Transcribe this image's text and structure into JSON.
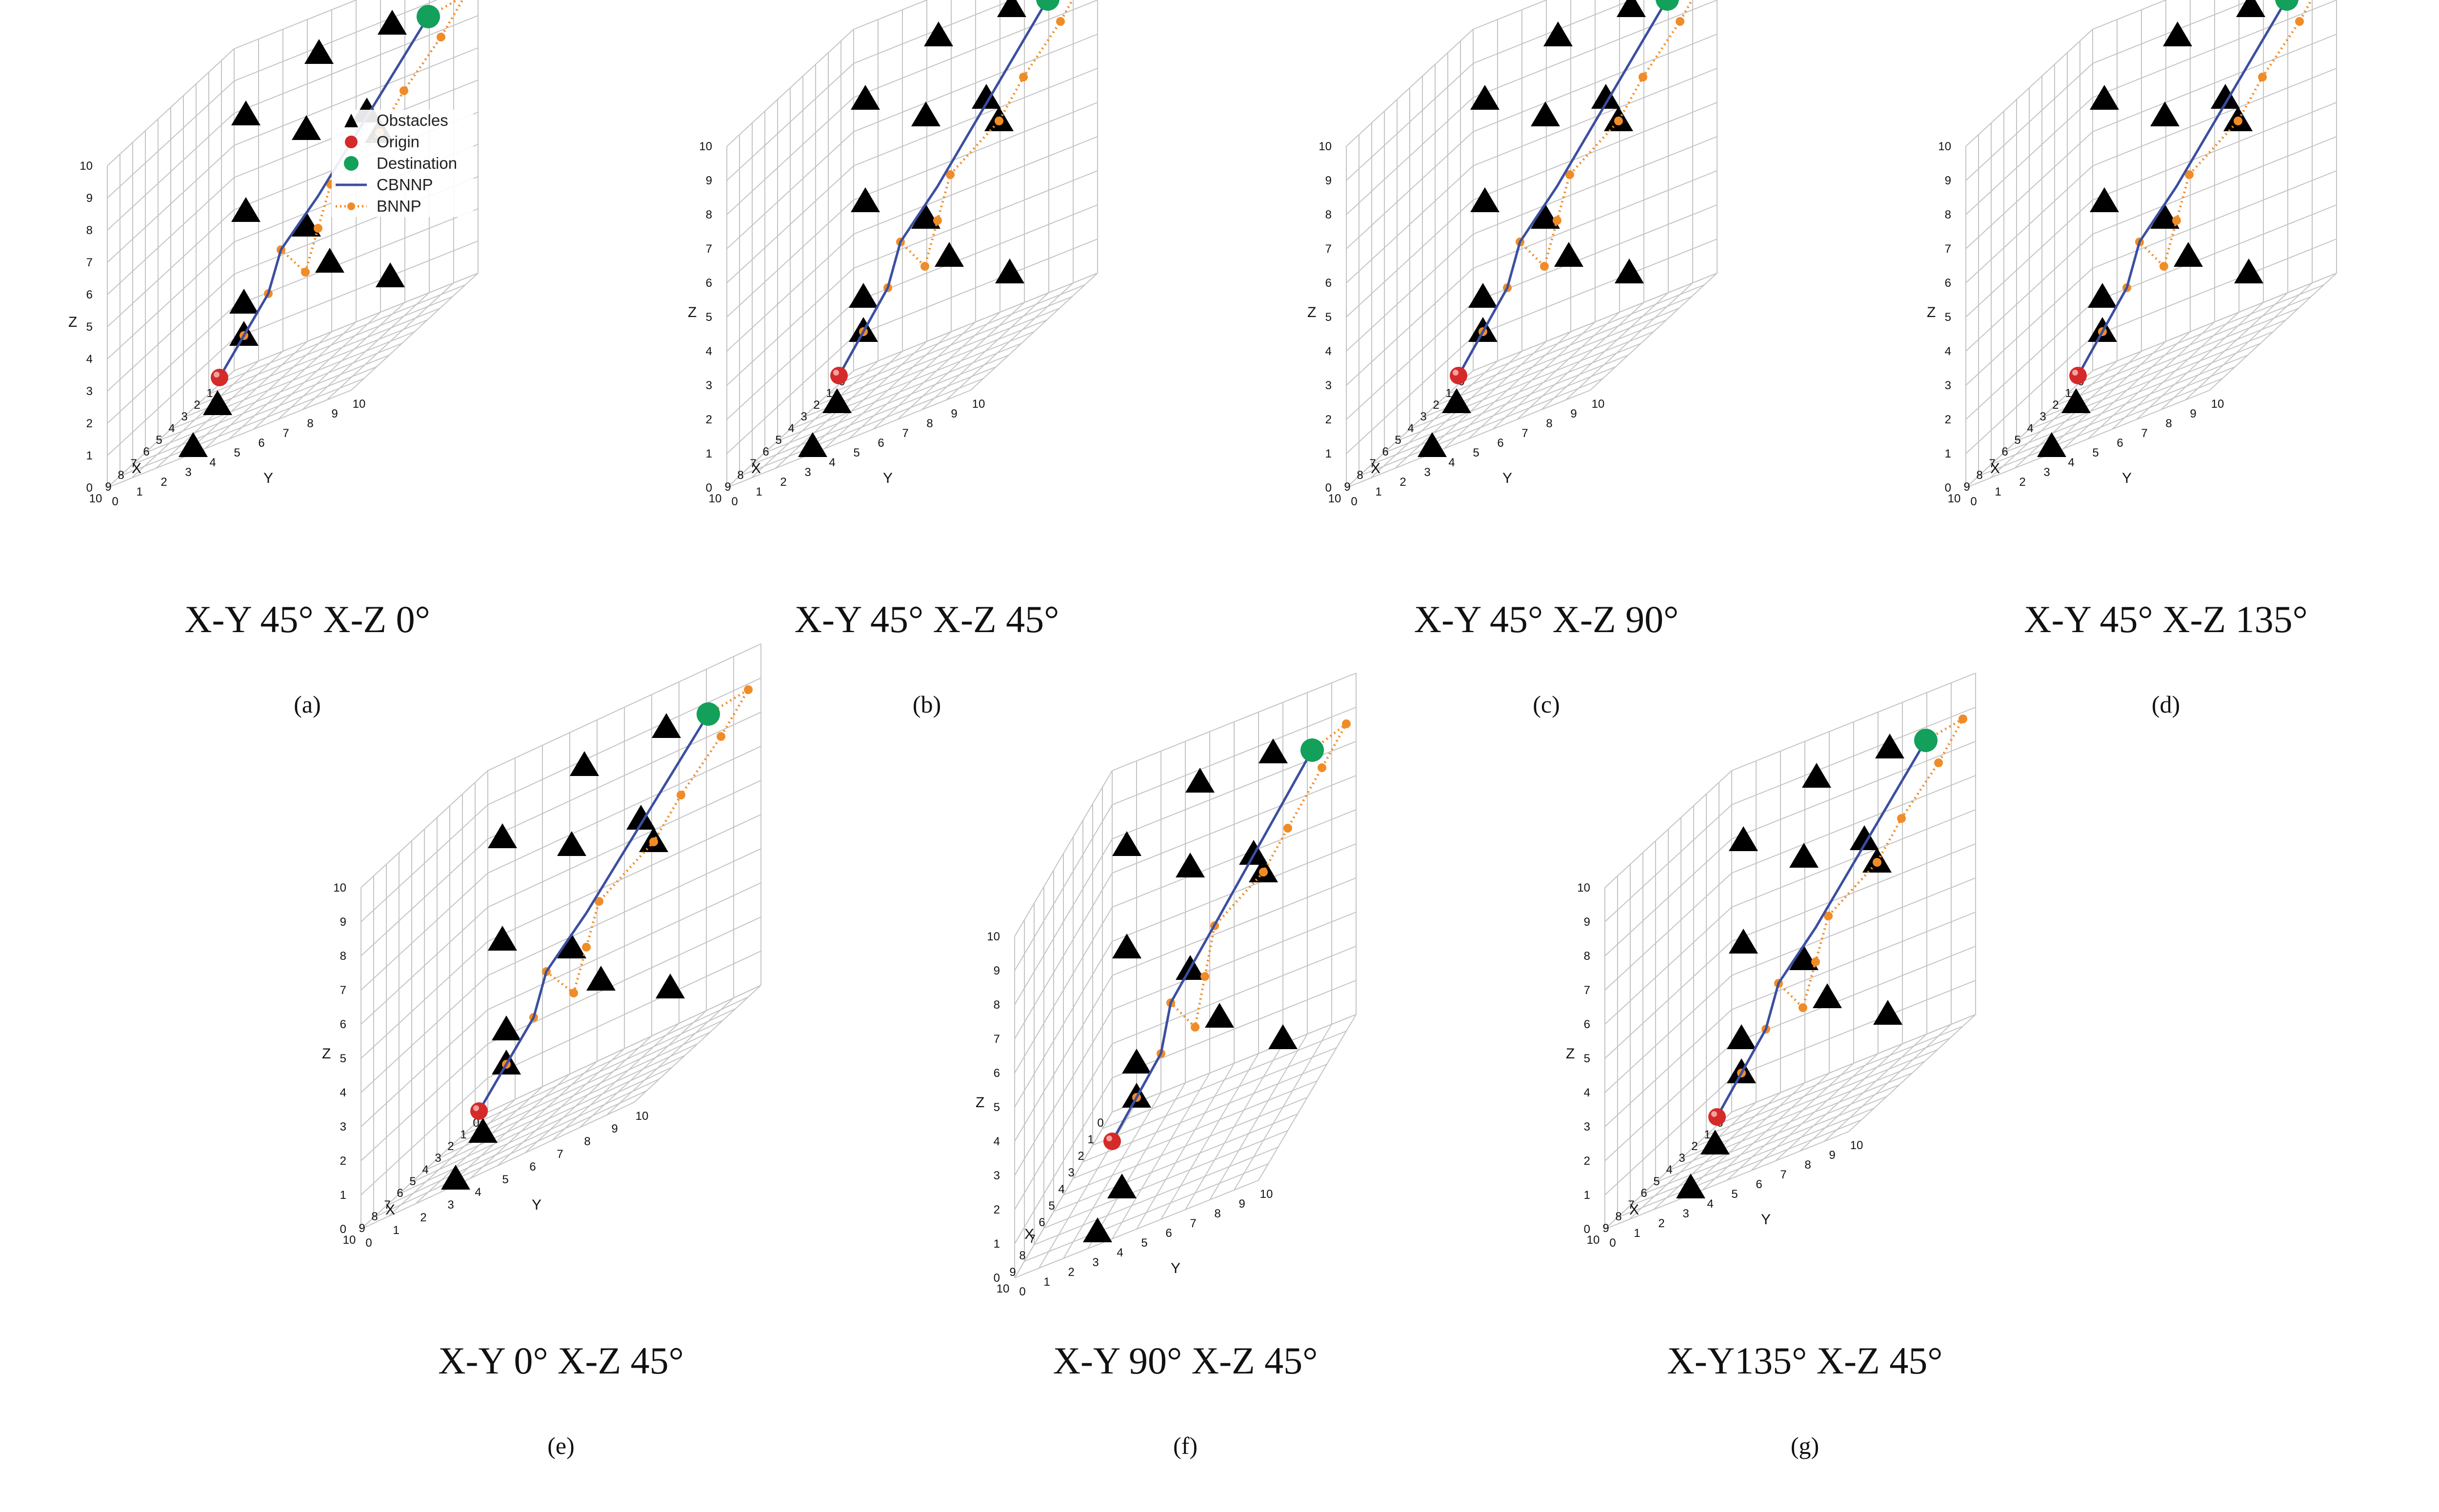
{
  "colors": {
    "obstacle": "#000000",
    "origin": "#d42a2a",
    "destination": "#12a05a",
    "cbnnp": "#3b4fa0",
    "bnnp": "#f08c28",
    "grid": "#c4c4c4",
    "text": "#111111"
  },
  "legend": {
    "items": [
      {
        "label": "Obstacles",
        "marker": "triangle-icon",
        "color": "#000000"
      },
      {
        "label": "Origin",
        "marker": "red-sphere-icon",
        "color": "#d42a2a"
      },
      {
        "label": "Destination",
        "marker": "green-circle-icon",
        "color": "#12a05a"
      },
      {
        "label": "CBNNP",
        "marker": "solid-line-icon",
        "color": "#3b4fa0"
      },
      {
        "label": "BNNP",
        "marker": "dotted-line-icon",
        "color": "#f08c28"
      }
    ]
  },
  "chart_data": [
    {
      "id": "a",
      "type": "scatter3d",
      "label": "(a)",
      "caption": "X-Y 45° X-Z 0°",
      "xy_angle": 45,
      "xz_angle": 0
    },
    {
      "id": "b",
      "type": "scatter3d",
      "label": "(b)",
      "caption": "X-Y 45° X-Z 45°",
      "xy_angle": 45,
      "xz_angle": 45
    },
    {
      "id": "c",
      "type": "scatter3d",
      "label": "(c)",
      "caption": "X-Y 45° X-Z 90°",
      "xy_angle": 45,
      "xz_angle": 90
    },
    {
      "id": "d",
      "type": "scatter3d",
      "label": "(d)",
      "caption": "X-Y 45° X-Z 135°",
      "xy_angle": 45,
      "xz_angle": 135
    },
    {
      "id": "e",
      "type": "scatter3d",
      "label": "(e)",
      "caption": "X-Y 0° X-Z 45°",
      "xy_angle": 0,
      "xz_angle": 45
    },
    {
      "id": "f",
      "type": "scatter3d",
      "label": "(f)",
      "caption": "X-Y 90° X-Z 45°",
      "xy_angle": 90,
      "xz_angle": 45
    },
    {
      "id": "g",
      "type": "scatter3d",
      "label": "(g)",
      "caption": "X-Y135° X-Z 45°",
      "xy_angle": 135,
      "xz_angle": 45
    }
  ],
  "shared_axes": {
    "xlabel": "X",
    "ylabel": "Y",
    "zlabel": "Z",
    "xlim": [
      0,
      10
    ],
    "ylim": [
      0,
      10
    ],
    "zlim": [
      0,
      10
    ],
    "ticks": [
      0,
      1,
      2,
      3,
      4,
      5,
      6,
      7,
      8,
      9,
      10
    ],
    "grid": true,
    "legend_position": "top-right",
    "obstacles": [
      {
        "x": 1,
        "y": 1,
        "z": 8
      },
      {
        "x": 1,
        "y": 1,
        "z": 5
      },
      {
        "x": 1,
        "y": 4,
        "z": 9
      },
      {
        "x": 2,
        "y": 4,
        "z": 7
      },
      {
        "x": 2,
        "y": 4,
        "z": 4
      },
      {
        "x": 1,
        "y": 7,
        "z": 9
      },
      {
        "x": 2,
        "y": 7,
        "z": 6
      },
      {
        "x": 3,
        "y": 7,
        "z": 7
      },
      {
        "x": 5,
        "y": 3,
        "z": 3
      },
      {
        "x": 5,
        "y": 3,
        "z": 2
      },
      {
        "x": 4,
        "y": 6,
        "z": 3
      },
      {
        "x": 5,
        "y": 9,
        "z": 2
      },
      {
        "x": 9,
        "y": 4,
        "z": 1
      },
      {
        "x": 9,
        "y": 3,
        "z": 0
      }
    ],
    "origin": {
      "x": 5,
      "y": 2,
      "z": 1
    },
    "destination": {
      "x": 2,
      "y": 9,
      "z": 9
    },
    "cbnnp_path": [
      {
        "x": 5,
        "y": 2,
        "z": 1
      },
      {
        "x": 5,
        "y": 3,
        "z": 2
      },
      {
        "x": 5,
        "y": 4,
        "z": 3
      },
      {
        "x": 4,
        "y": 4,
        "z": 4
      },
      {
        "x": 3,
        "y": 5,
        "z": 5
      },
      {
        "x": 2,
        "y": 9,
        "z": 9
      }
    ],
    "bnnp_path": [
      {
        "x": 5,
        "y": 2,
        "z": 1
      },
      {
        "x": 5,
        "y": 3,
        "z": 2
      },
      {
        "x": 5,
        "y": 4,
        "z": 3
      },
      {
        "x": 4,
        "y": 4,
        "z": 4
      },
      {
        "x": 4,
        "y": 5,
        "z": 3
      },
      {
        "x": 3,
        "y": 5,
        "z": 4
      },
      {
        "x": 2,
        "y": 5,
        "z": 5
      },
      {
        "x": 2,
        "y": 7,
        "z": 6
      },
      {
        "x": 2,
        "y": 8,
        "z": 7
      },
      {
        "x": 1,
        "y": 9,
        "z": 8
      },
      {
        "x": 1,
        "y": 10,
        "z": 9
      },
      {
        "x": 2,
        "y": 9,
        "z": 9
      }
    ]
  }
}
